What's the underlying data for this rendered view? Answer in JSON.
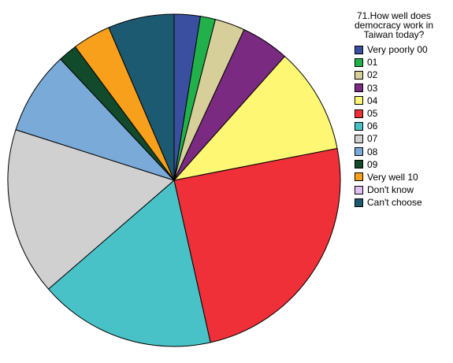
{
  "chart_data": {
    "type": "pie",
    "legend_title": "71.How well does democracy work in Taiwan today?",
    "legend_position": "right",
    "start_angle_deg": 0,
    "direction": "clockwise",
    "slices": [
      {
        "label": "Very poorly 00",
        "value": 2.6,
        "color": "#3a4fa0"
      },
      {
        "label": "01",
        "value": 1.5,
        "color": "#22b04a"
      },
      {
        "label": "02",
        "value": 3.0,
        "color": "#d6cf9a"
      },
      {
        "label": "03",
        "value": 4.8,
        "color": "#7a2a80"
      },
      {
        "label": "04",
        "value": 10.6,
        "color": "#fdf773"
      },
      {
        "label": "05",
        "value": 25.2,
        "color": "#ef3038"
      },
      {
        "label": "06",
        "value": 17.6,
        "color": "#48c2c6"
      },
      {
        "label": "07",
        "value": 16.7,
        "color": "#d0d0d0"
      },
      {
        "label": "08",
        "value": 8.3,
        "color": "#7aaad8"
      },
      {
        "label": "09",
        "value": 1.9,
        "color": "#124a2c"
      },
      {
        "label": "Very well  10",
        "value": 3.8,
        "color": "#f8a01c"
      },
      {
        "label": "Don't know",
        "value": 0.0,
        "color": "#e0c0f0"
      },
      {
        "label": "Can't choose",
        "value": 6.6,
        "color": "#1c5a72"
      }
    ]
  }
}
